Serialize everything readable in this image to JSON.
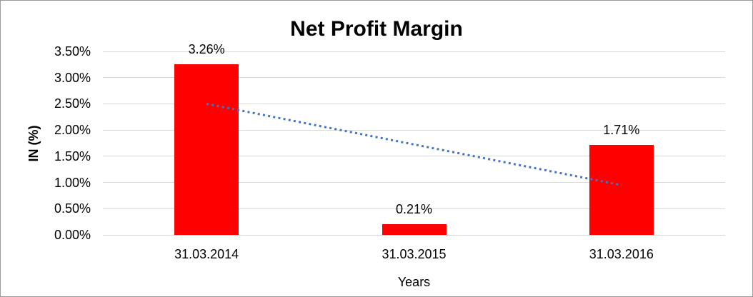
{
  "chart_data": {
    "type": "bar",
    "title": "Net Profit Margin",
    "xlabel": "Years",
    "ylabel": "IN (%)",
    "categories": [
      "31.03.2014",
      "31.03.2015",
      "31.03.2016"
    ],
    "values": [
      3.26,
      0.21,
      1.71
    ],
    "data_labels": [
      "3.26%",
      "0.21%",
      "1.71%"
    ],
    "ylim": [
      0,
      3.5
    ],
    "ytick_step": 0.5,
    "ytick_labels": [
      "0.00%",
      "0.50%",
      "1.00%",
      "1.50%",
      "2.00%",
      "2.50%",
      "3.00%",
      "3.50%"
    ],
    "grid": true,
    "legend": "none",
    "colors": {
      "bar": "#ff0000",
      "gridline": "#d9d9d9",
      "trendline": "#4472c4",
      "text": "#000000"
    },
    "trendline": {
      "type": "linear",
      "style": "dotted",
      "color": "#4472c4",
      "start_value": 2.5,
      "end_value": 0.95
    }
  }
}
